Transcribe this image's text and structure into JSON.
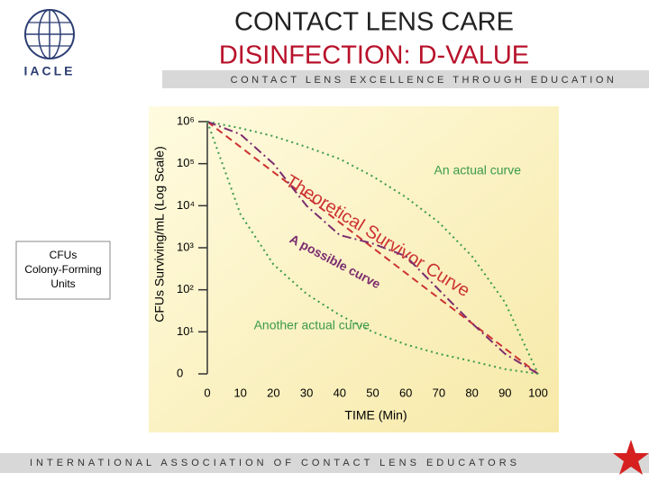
{
  "slide": {
    "logo": "IACLE",
    "banner": "CONTACT LENS EXCELLENCE THROUGH EDUCATION",
    "footer": "INTERNATIONAL ASSOCIATION OF CONTACT LENS EDUCATORS",
    "title": [
      "CONTACT LENS CARE",
      "DISINFECTION: D-VALUE"
    ],
    "note": [
      "CFUs",
      "Colony-Forming",
      "Units"
    ]
  },
  "chart_data": {
    "type": "line",
    "y_label": "CFUs Surviving/mL (Log Scale)",
    "x_label": "TIME (Min)",
    "log_scale": true,
    "x": [
      0,
      10,
      20,
      30,
      40,
      50,
      60,
      70,
      80,
      90,
      100
    ],
    "xlim": [
      0,
      100
    ],
    "xticks": [
      0,
      10,
      20,
      30,
      40,
      50,
      60,
      70,
      80,
      90,
      100
    ],
    "ylim": [
      1,
      1000000
    ],
    "yticks": [
      {
        "value": 1,
        "label": "0"
      },
      {
        "value": 10,
        "label": "10¹"
      },
      {
        "value": 100,
        "label": "10²"
      },
      {
        "value": 1000,
        "label": "10³"
      },
      {
        "value": 10000,
        "label": "10⁴"
      },
      {
        "value": 100000,
        "label": "10⁵"
      },
      {
        "value": 1000000,
        "label": "10⁶"
      }
    ],
    "series": [
      {
        "name": "Theoretical Survivor Curve",
        "color": "#cc3333",
        "dash": "8 5",
        "values": [
          1000000,
          250000,
          63000,
          16000,
          4000,
          1000,
          250,
          63,
          16,
          4,
          1
        ]
      },
      {
        "name": "An actual curve",
        "color": "#3a9a4a",
        "dash": "2 4",
        "values": [
          1000000,
          700000,
          450000,
          250000,
          130000,
          50000,
          16000,
          4000,
          630,
          50,
          1
        ]
      },
      {
        "name": "A possible curve",
        "color": "#7b2d6e",
        "dash": "10 4 2 4",
        "values": [
          1000000,
          500000,
          100000,
          10000,
          2000,
          1260,
          630,
          100,
          16,
          3,
          1
        ]
      },
      {
        "name": "Another actual curve",
        "color": "#3a9a4a",
        "dash": "2 4",
        "values": [
          1000000,
          6300,
          400,
          80,
          25,
          10,
          5,
          3,
          2,
          1.3,
          1
        ]
      }
    ]
  }
}
